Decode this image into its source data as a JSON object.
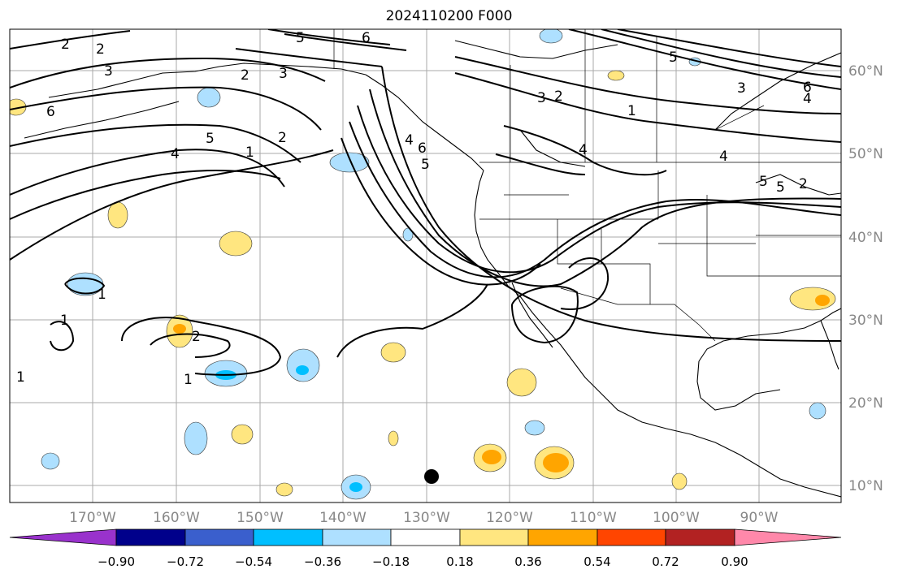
{
  "title": "2024110200 F000",
  "lon_labels": [
    "170°W",
    "160°W",
    "150°W",
    "140°W",
    "130°W",
    "120°W",
    "110°W",
    "100°W",
    "90°W"
  ],
  "lat_labels": [
    "60°N",
    "50°N",
    "40°N",
    "30°N",
    "20°N",
    "10°N"
  ],
  "colorbar": {
    "ticks": [
      "−0.90",
      "−0.72",
      "−0.54",
      "−0.36",
      "−0.18",
      "0.18",
      "0.36",
      "0.54",
      "0.72",
      "0.90"
    ],
    "colors": [
      "#9932cc",
      "#00008b",
      "#3a5fcd",
      "#00bfff",
      "#aee0ff",
      "#ffffff",
      "#ffe680",
      "#ffa500",
      "#ff4500",
      "#b22222",
      "#ff88aa"
    ]
  },
  "contour_labels": [
    "2",
    "2",
    "3",
    "6",
    "5",
    "6",
    "3",
    "2",
    "5",
    "4",
    "1",
    "2",
    "5",
    "4",
    "6",
    "5",
    "3",
    "2",
    "1",
    "4",
    "5",
    "3",
    "6",
    "4",
    "4",
    "5",
    "2",
    "1",
    "1",
    "2",
    "1",
    "1"
  ],
  "colors": {
    "negative_light": "#aee0ff",
    "negative_mid": "#00bfff",
    "positive_light": "#ffe680",
    "positive_mid": "#ffa500",
    "positive_strong": "#ff4500"
  }
}
